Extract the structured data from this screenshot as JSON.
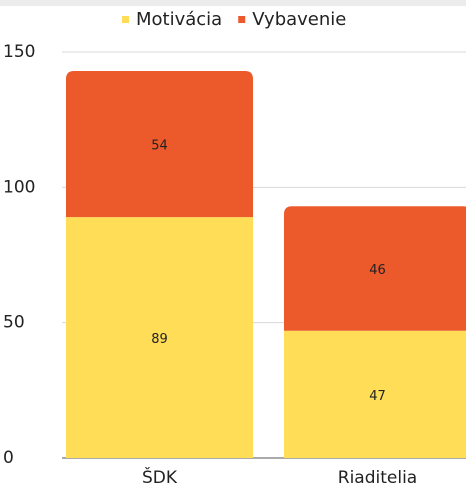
{
  "chart_data": {
    "type": "stacked_bar",
    "categories": [
      "ŠDK",
      "Riaditelia"
    ],
    "series": [
      {
        "name": "Motivácia",
        "color": "#ffdd57",
        "values": [
          89,
          47
        ]
      },
      {
        "name": "Vybavenie",
        "color": "#ec5a2c",
        "values": [
          54,
          46
        ]
      }
    ],
    "ylim": [
      0,
      150
    ],
    "yticks": [
      0,
      50,
      100,
      150
    ],
    "grid": true,
    "legend": "top"
  }
}
